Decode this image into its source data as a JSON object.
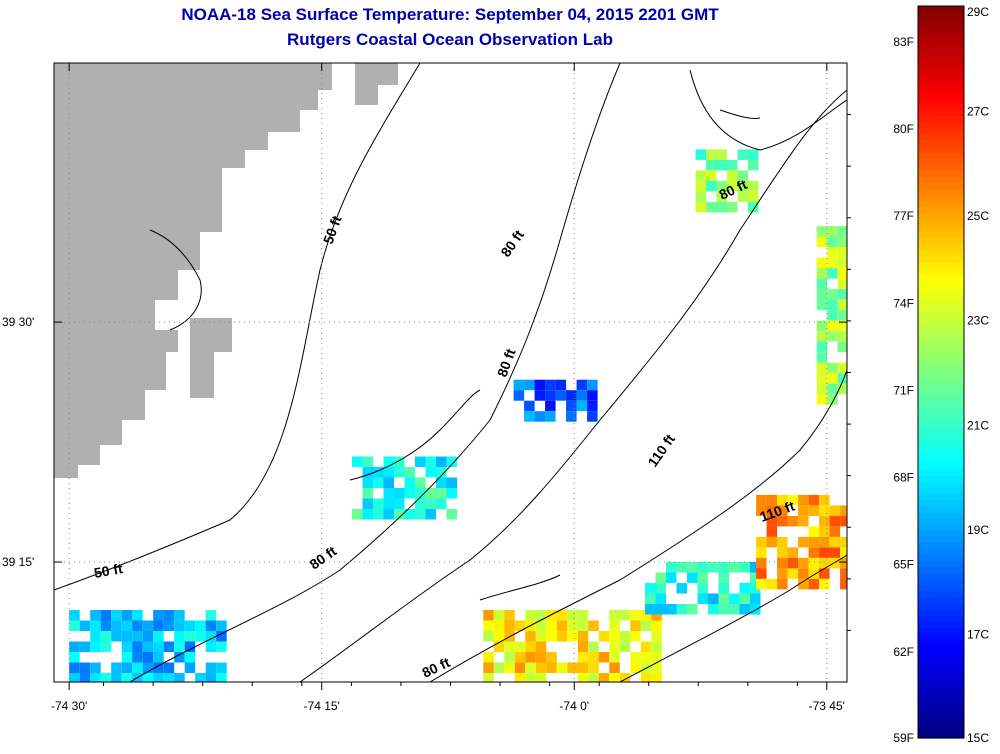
{
  "chart_data": {
    "type": "heatmap",
    "title": "NOAA-18 Sea Surface Temperature:  September 04, 2015 2201 GMT",
    "subtitle": "Rutgers Coastal Ocean Observation Lab",
    "x_ticks": [
      {
        "value": -74.5,
        "label": "-74 30'"
      },
      {
        "value": -74.25,
        "label": "-74 15'"
      },
      {
        "value": -74.0,
        "label": "-74 0'"
      },
      {
        "value": -73.75,
        "label": "-73 45'"
      }
    ],
    "y_ticks": [
      {
        "value": 39.5,
        "label": "39 30'"
      },
      {
        "value": 39.25,
        "label": "39 15'"
      }
    ],
    "xlim": [
      -74.515,
      -73.73
    ],
    "ylim": [
      39.125,
      39.77
    ],
    "grid": "dotted",
    "contour_labels": [
      "50 ft",
      "50 ft",
      "80 ft",
      "80 ft",
      "80 ft",
      "80 ft",
      "80 ft",
      "110 ft",
      "110 ft"
    ],
    "colorbar": {
      "range_c": [
        15,
        29
      ],
      "celsius_labels": [
        {
          "value": 29,
          "label": "29C"
        },
        {
          "value": 27,
          "label": "27C"
        },
        {
          "value": 25,
          "label": "25C"
        },
        {
          "value": 23,
          "label": "23C"
        },
        {
          "value": 21,
          "label": "21C"
        },
        {
          "value": 19,
          "label": "19C"
        },
        {
          "value": 17,
          "label": "17C"
        },
        {
          "value": 15,
          "label": "15C"
        }
      ],
      "fahrenheit_labels": [
        {
          "value": 83,
          "label": "83F"
        },
        {
          "value": 80,
          "label": "80F"
        },
        {
          "value": 77,
          "label": "77F"
        },
        {
          "value": 74,
          "label": "74F"
        },
        {
          "value": 71,
          "label": "71F"
        },
        {
          "value": 68,
          "label": "68F"
        },
        {
          "value": 65,
          "label": "65F"
        },
        {
          "value": 62,
          "label": "62F"
        },
        {
          "value": 59,
          "label": "59F"
        }
      ]
    },
    "land_color": "#b0b0b0",
    "sst_regions": [
      {
        "lon": [
          -74.5,
          -74.35
        ],
        "lat": [
          39.13,
          39.2
        ],
        "temp_c": 19.5
      },
      {
        "lon": [
          -74.22,
          -74.12
        ],
        "lat": [
          39.3,
          39.36
        ],
        "temp_c": 20.5
      },
      {
        "lon": [
          -74.06,
          -73.98
        ],
        "lat": [
          39.4,
          39.44
        ],
        "temp_c": 18.0
      },
      {
        "lon": [
          -74.09,
          -73.92
        ],
        "lat": [
          39.13,
          39.2
        ],
        "temp_c": 24.0
      },
      {
        "lon": [
          -73.93,
          -73.82
        ],
        "lat": [
          39.2,
          39.25
        ],
        "temp_c": 20.5
      },
      {
        "lon": [
          -73.82,
          -73.73
        ],
        "lat": [
          39.23,
          39.32
        ],
        "temp_c": 25.0
      },
      {
        "lon": [
          -73.76,
          -73.73
        ],
        "lat": [
          39.42,
          39.6
        ],
        "temp_c": 22.5
      },
      {
        "lon": [
          -73.88,
          -73.82
        ],
        "lat": [
          39.62,
          39.68
        ],
        "temp_c": 22.0
      }
    ]
  }
}
